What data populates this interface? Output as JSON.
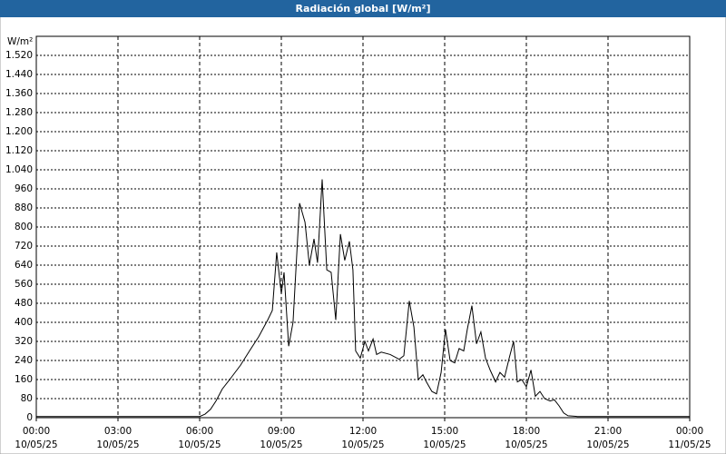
{
  "chart_data": {
    "type": "line",
    "title": "Radiación global [W/m²]",
    "y_label": "W/m²",
    "color": "#000000",
    "grid": true,
    "xlim": [
      0,
      24
    ],
    "xticks": [
      {
        "value": 0,
        "label": [
          "00:00",
          "10/05/25"
        ]
      },
      {
        "value": 3,
        "label": [
          "03:00",
          "10/05/25"
        ]
      },
      {
        "value": 6,
        "label": [
          "06:00",
          "10/05/25"
        ]
      },
      {
        "value": 9,
        "label": [
          "09:00",
          "10/05/25"
        ]
      },
      {
        "value": 12,
        "label": [
          "12:00",
          "10/05/25"
        ]
      },
      {
        "value": 15,
        "label": [
          "15:00",
          "10/05/25"
        ]
      },
      {
        "value": 18,
        "label": [
          "18:00",
          "10/05/25"
        ]
      },
      {
        "value": 21,
        "label": [
          "21:00",
          "10/05/25"
        ]
      },
      {
        "value": 24,
        "label": [
          "00:00",
          "11/05/25"
        ]
      }
    ],
    "ylim": [
      0,
      1600
    ],
    "yticks": [
      0,
      80,
      160,
      240,
      320,
      400,
      480,
      560,
      640,
      720,
      800,
      880,
      960,
      {
        "value": 1040,
        "label": "1.040"
      },
      {
        "value": 1120,
        "label": "1.120"
      },
      {
        "value": 1200,
        "label": "1.200"
      },
      {
        "value": 1280,
        "label": "1.280"
      },
      {
        "value": 1360,
        "label": "1.360"
      },
      {
        "value": 1440,
        "label": "1.440"
      },
      {
        "value": 1520,
        "label": "1.520"
      }
    ],
    "x": [
      0,
      6.0,
      6.2,
      6.4,
      6.6,
      6.83,
      7.17,
      7.5,
      7.83,
      8.17,
      8.5,
      8.67,
      8.83,
      9.0,
      9.1,
      9.27,
      9.43,
      9.67,
      9.87,
      10.03,
      10.2,
      10.33,
      10.5,
      10.67,
      10.83,
      11.0,
      11.17,
      11.33,
      11.5,
      11.63,
      11.73,
      11.9,
      12.07,
      12.2,
      12.37,
      12.5,
      12.67,
      13.0,
      13.33,
      13.5,
      13.7,
      13.87,
      14.03,
      14.2,
      14.33,
      14.53,
      14.7,
      14.87,
      15.03,
      15.2,
      15.37,
      15.53,
      15.7,
      15.83,
      16.0,
      16.17,
      16.33,
      16.5,
      16.67,
      16.87,
      17.03,
      17.2,
      17.37,
      17.53,
      17.67,
      17.83,
      18.0,
      18.17,
      18.33,
      18.5,
      18.67,
      18.87,
      19.03,
      19.2,
      19.37,
      19.53,
      19.87,
      24
    ],
    "values": [
      5,
      5,
      15,
      35,
      70,
      120,
      170,
      220,
      280,
      340,
      410,
      450,
      693,
      520,
      610,
      300,
      400,
      900,
      820,
      640,
      750,
      650,
      1000,
      620,
      610,
      410,
      770,
      660,
      740,
      620,
      280,
      250,
      320,
      280,
      330,
      265,
      275,
      265,
      245,
      260,
      490,
      380,
      160,
      180,
      150,
      110,
      100,
      190,
      370,
      240,
      230,
      290,
      280,
      370,
      470,
      310,
      360,
      250,
      200,
      150,
      190,
      170,
      250,
      320,
      150,
      160,
      130,
      200,
      90,
      110,
      80,
      70,
      75,
      50,
      20,
      8,
      5,
      5
    ]
  }
}
